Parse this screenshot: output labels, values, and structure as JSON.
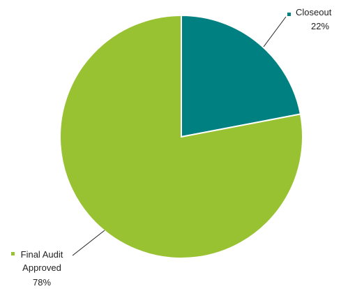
{
  "chart_data": {
    "type": "pie",
    "start_angle_deg": 0,
    "direction": "clockwise",
    "slices": [
      {
        "label_lines": [
          "Closeout",
          "22%"
        ],
        "value": 22,
        "color": "#008080"
      },
      {
        "label_lines": [
          "Final Audit",
          "Approved",
          "78%"
        ],
        "value": 78,
        "color": "#99c232"
      }
    ],
    "leader_line_color": "#222222",
    "slice_border_color": "#ffffff"
  }
}
